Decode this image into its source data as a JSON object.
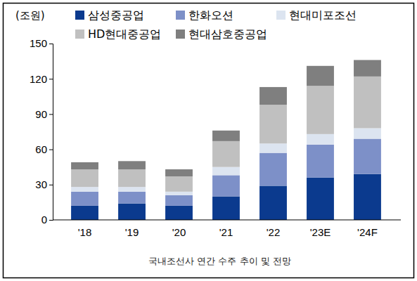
{
  "chart_data": {
    "type": "bar",
    "stacked": true,
    "title": "국내조선사 연간 수주 추이 및 전망",
    "y_label": "(조원)",
    "categories": [
      "'18",
      "'19",
      "'20",
      "'21",
      "'22",
      "'23E",
      "'24F"
    ],
    "series": [
      {
        "name": "삼성중공업",
        "color": "#0b3a8e",
        "values": [
          12,
          14,
          12,
          20,
          29,
          36,
          39
        ]
      },
      {
        "name": "한화오션",
        "color": "#7d90c8",
        "values": [
          12,
          10,
          9,
          18,
          28,
          28,
          30
        ]
      },
      {
        "name": "현대미포조선",
        "color": "#dce4f0",
        "values": [
          4,
          4,
          3,
          7,
          8,
          9,
          9
        ]
      },
      {
        "name": "HD현대중공업",
        "color": "#c0c0c0",
        "values": [
          15,
          15,
          13,
          22,
          33,
          41,
          44
        ]
      },
      {
        "name": "현대삼호중공업",
        "color": "#7f7f7f",
        "values": [
          6,
          7,
          6,
          9,
          15,
          17,
          14
        ]
      }
    ],
    "ylim": [
      0,
      150
    ],
    "yticks": [
      0,
      30,
      60,
      90,
      120,
      150
    ],
    "legend": "top",
    "grid": false
  }
}
